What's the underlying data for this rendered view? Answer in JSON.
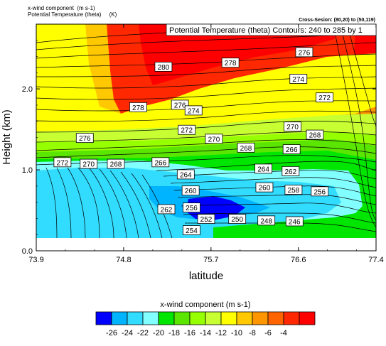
{
  "header": {
    "var1_name": "x-wind component",
    "var1_units": "(m s-1)",
    "var2_name": "Potential Temperature (theta)",
    "var2_units": "(K)",
    "cross_section": "Cross-Sesion: (80,20) to (50,119)"
  },
  "chart_data": {
    "type": "heatmap",
    "title": "Potential Temperature (theta)   Contours: 240 to 285 by 1",
    "xlabel": "latitude",
    "ylabel": "Height (km)",
    "xlim": [
      73.9,
      77.4
    ],
    "ylim": [
      0.0,
      2.8
    ],
    "x_ticks": [
      "73.9",
      "74.8",
      "75.7",
      "76.6",
      "77.4"
    ],
    "y_ticks": [
      "0.0",
      "1.0",
      "2.0"
    ],
    "colorbar": {
      "title": "x-wind component  (m s-1)",
      "tick_labels": [
        "-26",
        "-24",
        "-22",
        "-20",
        "-18",
        "-16",
        "-14",
        "-12",
        "-10",
        "-8",
        "-6",
        "-4"
      ],
      "colors": [
        "#0000ff",
        "#00b4ff",
        "#32dcff",
        "#82ffff",
        "#00e600",
        "#5ae600",
        "#96ff00",
        "#c8ff32",
        "#ffff00",
        "#ffc800",
        "#ff9600",
        "#ff6400",
        "#ff2800",
        "#ff0000"
      ]
    },
    "contour_labels": [
      {
        "label": "280",
        "x": 75.21,
        "y": 2.27
      },
      {
        "label": "278",
        "x": 75.9,
        "y": 2.32
      },
      {
        "label": "276",
        "x": 76.66,
        "y": 2.45
      },
      {
        "label": "274",
        "x": 76.6,
        "y": 2.12
      },
      {
        "label": "272",
        "x": 76.87,
        "y": 1.89
      },
      {
        "label": "278",
        "x": 74.95,
        "y": 1.77
      },
      {
        "label": "276",
        "x": 75.38,
        "y": 1.8
      },
      {
        "label": "274",
        "x": 75.52,
        "y": 1.73
      },
      {
        "label": "270",
        "x": 76.54,
        "y": 1.53
      },
      {
        "label": "268",
        "x": 76.77,
        "y": 1.43
      },
      {
        "label": "272",
        "x": 75.45,
        "y": 1.49
      },
      {
        "label": "270",
        "x": 75.73,
        "y": 1.38
      },
      {
        "label": "268",
        "x": 76.06,
        "y": 1.27
      },
      {
        "label": "266",
        "x": 76.53,
        "y": 1.25
      },
      {
        "label": "276",
        "x": 74.4,
        "y": 1.39
      },
      {
        "label": "272",
        "x": 74.17,
        "y": 1.09
      },
      {
        "label": "270",
        "x": 74.44,
        "y": 1.07
      },
      {
        "label": "268",
        "x": 74.72,
        "y": 1.07
      },
      {
        "label": "266",
        "x": 75.18,
        "y": 1.09
      },
      {
        "label": "264",
        "x": 76.24,
        "y": 1.01
      },
      {
        "label": "262",
        "x": 76.52,
        "y": 0.98
      },
      {
        "label": "264",
        "x": 75.44,
        "y": 0.94
      },
      {
        "label": "260",
        "x": 76.25,
        "y": 0.78
      },
      {
        "label": "258",
        "x": 76.55,
        "y": 0.75
      },
      {
        "label": "256",
        "x": 76.82,
        "y": 0.73
      },
      {
        "label": "260",
        "x": 75.49,
        "y": 0.74
      },
      {
        "label": "262",
        "x": 75.24,
        "y": 0.51
      },
      {
        "label": "256",
        "x": 75.5,
        "y": 0.53
      },
      {
        "label": "252",
        "x": 75.65,
        "y": 0.39
      },
      {
        "label": "250",
        "x": 75.97,
        "y": 0.39
      },
      {
        "label": "248",
        "x": 76.27,
        "y": 0.37
      },
      {
        "label": "246",
        "x": 76.56,
        "y": 0.36
      },
      {
        "label": "254",
        "x": 75.5,
        "y": 0.25
      }
    ]
  }
}
